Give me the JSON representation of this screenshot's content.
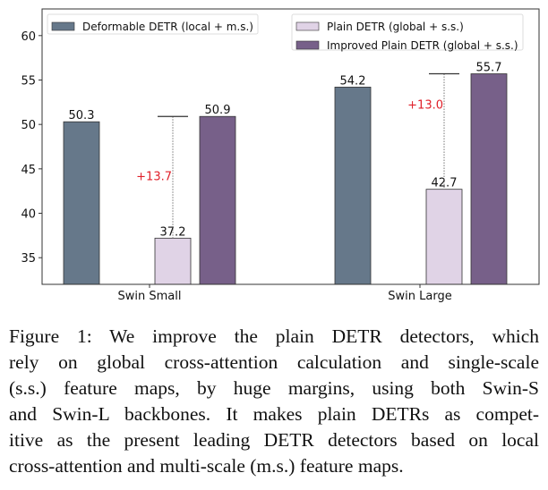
{
  "chart_data": {
    "type": "bar",
    "categories": [
      "Swin Small",
      "Swin Large"
    ],
    "series": [
      {
        "name": "Deformable DETR (local + m.s.)",
        "values": [
          50.3,
          54.2
        ],
        "color": "#66788a"
      },
      {
        "name": "Plain DETR (global + s.s.)",
        "values": [
          37.2,
          42.7
        ],
        "color": "#e0d3e6"
      },
      {
        "name": "Improved Plain DETR (global + s.s.)",
        "values": [
          50.9,
          55.7
        ],
        "color": "#776089"
      }
    ],
    "data_labels": [
      [
        "50.3",
        "54.2"
      ],
      [
        "37.2",
        "42.7"
      ],
      [
        "50.9",
        "55.7"
      ]
    ],
    "annotations": [
      {
        "category": "Swin Small",
        "text": "+13.7",
        "from": 37.2,
        "to": 50.9,
        "color": "#e0202a"
      },
      {
        "category": "Swin Large",
        "text": "+13.0",
        "from": 42.7,
        "to": 55.7,
        "color": "#e0202a"
      }
    ],
    "yticks": [
      "35",
      "40",
      "45",
      "50",
      "55",
      "60"
    ],
    "ylim": [
      32,
      63
    ],
    "grid": false,
    "legend_placement": "top (split: top-left and top-right)",
    "title": "",
    "xlabel": "",
    "ylabel": ""
  },
  "caption": {
    "lines": [
      "Figure 1:  We improve the plain DETR detectors, which",
      "rely on global cross-attention calculation and single-scale",
      "(s.s.)  feature maps, by huge margins, using both Swin-S",
      "and Swin-L backbones. It makes plain DETRs as compet-",
      "itive as the present leading DETR detectors based on local",
      "cross-attention and multi-scale (m.s.) feature maps."
    ]
  }
}
